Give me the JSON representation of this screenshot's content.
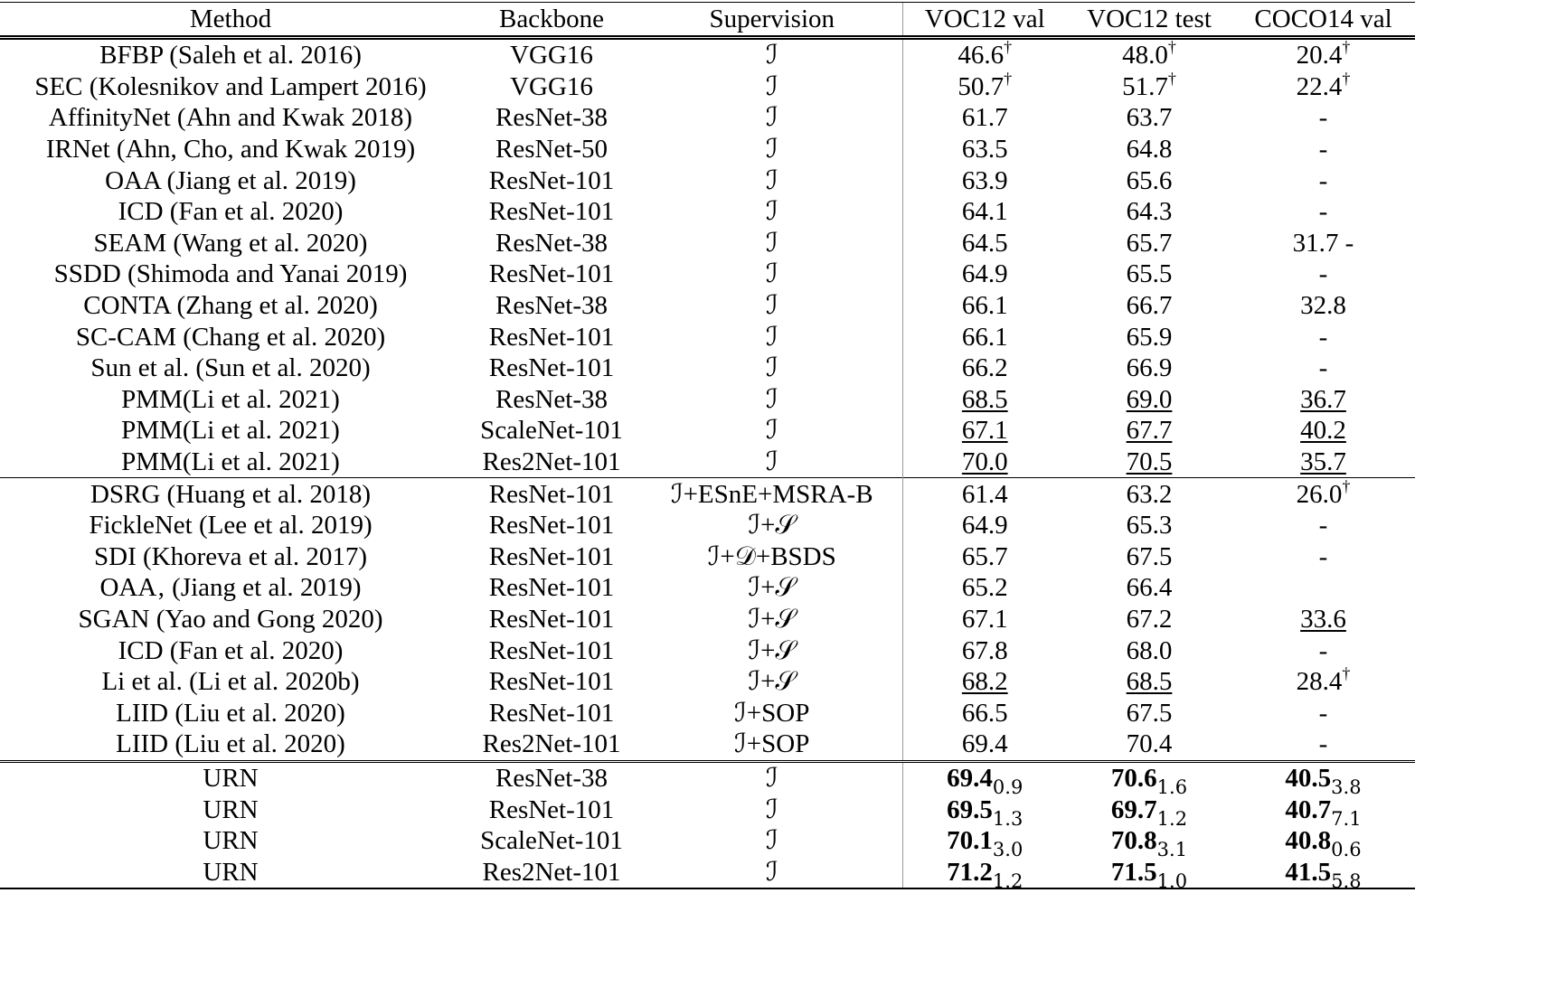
{
  "headers": [
    "Method",
    "Backbone",
    "Supervision",
    "VOC12 val",
    "VOC12 test",
    "COCO14 val"
  ],
  "groups": [
    [
      {
        "method": "BFBP (Saleh et al. 2016)",
        "backbone": "VGG16",
        "sup": "ℐ",
        "vals": [
          {
            "v": "46.6",
            "dag": "†"
          },
          {
            "v": "48.0",
            "dag": "†"
          },
          {
            "v": "20.4",
            "dag": "†"
          }
        ]
      },
      {
        "method": "SEC (Kolesnikov and Lampert 2016)",
        "backbone": "VGG16",
        "sup": "ℐ",
        "vals": [
          {
            "v": "50.7",
            "dag": "†"
          },
          {
            "v": "51.7",
            "dag": "†"
          },
          {
            "v": "22.4",
            "dag": "†"
          }
        ]
      },
      {
        "method": "AffinityNet (Ahn and Kwak 2018)",
        "backbone": "ResNet-38",
        "sup": "ℐ",
        "vals": [
          {
            "v": "61.7"
          },
          {
            "v": "63.7"
          },
          {
            "v": "-"
          }
        ]
      },
      {
        "method": "IRNet (Ahn, Cho, and Kwak 2019)",
        "backbone": "ResNet-50",
        "sup": "ℐ",
        "vals": [
          {
            "v": "63.5"
          },
          {
            "v": "64.8"
          },
          {
            "v": "-"
          }
        ]
      },
      {
        "method": "OAA (Jiang et al. 2019)",
        "backbone": "ResNet-101",
        "sup": "ℐ",
        "vals": [
          {
            "v": "63.9"
          },
          {
            "v": "65.6"
          },
          {
            "v": "-"
          }
        ]
      },
      {
        "method": "ICD (Fan et al. 2020)",
        "backbone": "ResNet-101",
        "sup": "ℐ",
        "vals": [
          {
            "v": "64.1"
          },
          {
            "v": "64.3"
          },
          {
            "v": "-"
          }
        ]
      },
      {
        "method": "SEAM (Wang et al. 2020)",
        "backbone": "ResNet-38",
        "sup": "ℐ",
        "vals": [
          {
            "v": "64.5"
          },
          {
            "v": "65.7"
          },
          {
            "v": "31.7 -"
          }
        ]
      },
      {
        "method": "SSDD (Shimoda and Yanai 2019)",
        "backbone": "ResNet-101",
        "sup": "ℐ",
        "vals": [
          {
            "v": "64.9"
          },
          {
            "v": "65.5"
          },
          {
            "v": "-"
          }
        ]
      },
      {
        "method": "CONTA (Zhang et al. 2020)",
        "backbone": "ResNet-38",
        "sup": "ℐ",
        "vals": [
          {
            "v": "66.1"
          },
          {
            "v": "66.7"
          },
          {
            "v": "32.8"
          }
        ]
      },
      {
        "method": "SC-CAM (Chang et al. 2020)",
        "backbone": "ResNet-101",
        "sup": "ℐ",
        "vals": [
          {
            "v": "66.1"
          },
          {
            "v": "65.9"
          },
          {
            "v": "-"
          }
        ]
      },
      {
        "method": "Sun et al. (Sun et al. 2020)",
        "backbone": "ResNet-101",
        "sup": "ℐ",
        "vals": [
          {
            "v": "66.2"
          },
          {
            "v": "66.9"
          },
          {
            "v": "-"
          }
        ]
      },
      {
        "method": "PMM(Li et al. 2021)",
        "backbone": "ResNet-38",
        "sup": "ℐ",
        "vals": [
          {
            "v": "68.5",
            "ul": true
          },
          {
            "v": "69.0",
            "ul": true
          },
          {
            "v": "36.7",
            "ul": true
          }
        ]
      },
      {
        "method": "PMM(Li et al. 2021)",
        "backbone": "ScaleNet-101",
        "sup": "ℐ",
        "vals": [
          {
            "v": "67.1",
            "ul": true
          },
          {
            "v": "67.7",
            "ul": true
          },
          {
            "v": "40.2",
            "ul": true
          }
        ]
      },
      {
        "method": "PMM(Li et al. 2021)",
        "backbone": "Res2Net-101",
        "sup": "ℐ",
        "vals": [
          {
            "v": "70.0",
            "ul": true
          },
          {
            "v": "70.5",
            "ul": true
          },
          {
            "v": "35.7",
            "ul": true
          }
        ]
      }
    ],
    [
      {
        "method": "DSRG (Huang et al. 2018)",
        "backbone": "ResNet-101",
        "sup": "ℐ+ESnE+MSRA-B",
        "vals": [
          {
            "v": "61.4"
          },
          {
            "v": "63.2"
          },
          {
            "v": "26.0",
            "dag": "†"
          }
        ]
      },
      {
        "method": "FickleNet (Lee et al. 2019)",
        "backbone": "ResNet-101",
        "sup": "ℐ+𝒮",
        "vals": [
          {
            "v": "64.9"
          },
          {
            "v": "65.3"
          },
          {
            "v": "-"
          }
        ]
      },
      {
        "method": "SDI (Khoreva et al. 2017)",
        "backbone": "ResNet-101",
        "sup": "ℐ+𝒟+BSDS",
        "vals": [
          {
            "v": "65.7"
          },
          {
            "v": "67.5"
          },
          {
            "v": "-"
          }
        ]
      },
      {
        "method": "OAA‚ (Jiang et al. 2019)",
        "backbone": "ResNet-101",
        "sup": "ℐ+𝒮",
        "vals": [
          {
            "v": "65.2"
          },
          {
            "v": "66.4"
          },
          {
            "v": ""
          }
        ]
      },
      {
        "method": "SGAN (Yao and Gong 2020)",
        "backbone": "ResNet-101",
        "sup": "ℐ+𝒮",
        "vals": [
          {
            "v": "67.1"
          },
          {
            "v": "67.2"
          },
          {
            "v": "33.6",
            "ul": true
          }
        ]
      },
      {
        "method": "ICD (Fan et al. 2020)",
        "backbone": "ResNet-101",
        "sup": "ℐ+𝒮",
        "vals": [
          {
            "v": "67.8"
          },
          {
            "v": "68.0"
          },
          {
            "v": "-"
          }
        ]
      },
      {
        "method": "Li et al. (Li et al. 2020b)",
        "backbone": "ResNet-101",
        "sup": "ℐ+𝒮",
        "vals": [
          {
            "v": "68.2",
            "ul": true
          },
          {
            "v": "68.5",
            "ul": true
          },
          {
            "v": "28.4",
            "dag": "†"
          }
        ]
      },
      {
        "method": "LIID (Liu et al. 2020)",
        "backbone": "ResNet-101",
        "sup": "ℐ+SOP",
        "vals": [
          {
            "v": "66.5"
          },
          {
            "v": "67.5"
          },
          {
            "v": "-"
          }
        ]
      },
      {
        "method": "LIID (Liu et al. 2020)",
        "backbone": "Res2Net-101",
        "sup": "ℐ+SOP",
        "vals": [
          {
            "v": "69.4"
          },
          {
            "v": "70.4"
          },
          {
            "v": "-"
          }
        ]
      }
    ],
    [
      {
        "method": "URN",
        "backbone": "ResNet-38",
        "sup": "ℐ",
        "vals": [
          {
            "v": "69.4",
            "bold": true,
            "sub": "0.9"
          },
          {
            "v": "70.6",
            "bold": true,
            "sub": "1.6"
          },
          {
            "v": "40.5",
            "bold": true,
            "sub": "3.8"
          }
        ]
      },
      {
        "method": "URN",
        "backbone": "ResNet-101",
        "sup": "ℐ",
        "vals": [
          {
            "v": "69.5",
            "bold": true,
            "sub": "1.3"
          },
          {
            "v": "69.7",
            "bold": true,
            "sub": "1.2"
          },
          {
            "v": "40.7",
            "bold": true,
            "sub": "7.1"
          }
        ]
      },
      {
        "method": "URN",
        "backbone": "ScaleNet-101",
        "sup": "ℐ",
        "vals": [
          {
            "v": "70.1",
            "bold": true,
            "sub": "3.0"
          },
          {
            "v": "70.8",
            "bold": true,
            "sub": "3.1"
          },
          {
            "v": "40.8",
            "bold": true,
            "sub": "0.6"
          }
        ]
      },
      {
        "method": "URN",
        "backbone": "Res2Net-101",
        "sup": "ℐ",
        "vals": [
          {
            "v": "71.2",
            "bold": true,
            "sub": "1.2"
          },
          {
            "v": "71.5",
            "bold": true,
            "sub": "1.0"
          },
          {
            "v": "41.5",
            "bold": true,
            "sub": "5.8"
          }
        ]
      }
    ]
  ]
}
